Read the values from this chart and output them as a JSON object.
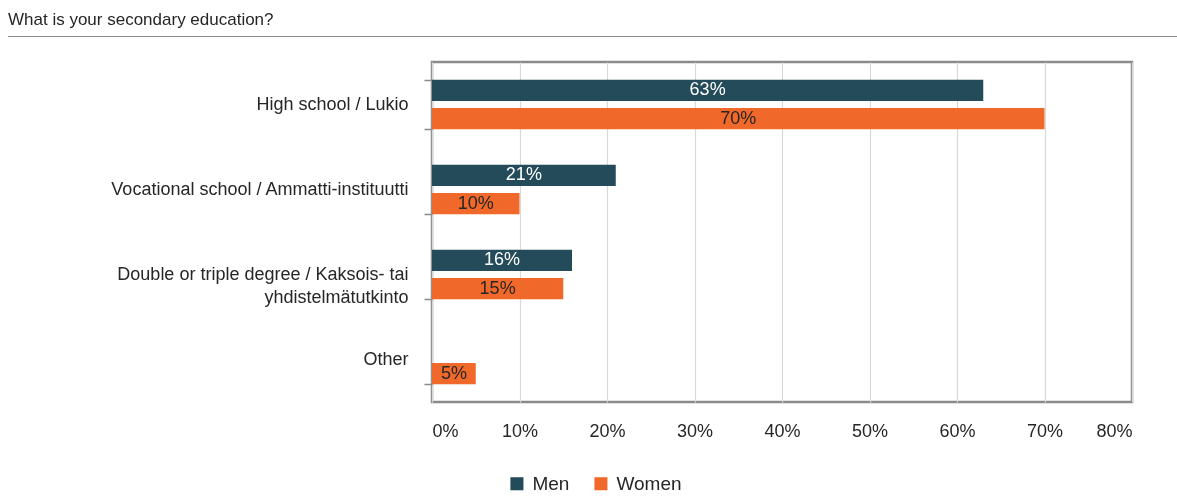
{
  "chart_data": {
    "type": "bar",
    "orientation": "horizontal",
    "title": "What is your secondary education?",
    "categories": [
      "High school / Lukio",
      "Vocational school / Ammatti-instituutti",
      "Double or triple degree / Kaksois- tai yhdistelmätutkinto",
      "Other"
    ],
    "series": [
      {
        "name": "Men",
        "color": "#244b5a",
        "values": [
          63,
          21,
          16,
          null
        ],
        "value_labels": [
          "63%",
          "21%",
          "16%",
          null
        ]
      },
      {
        "name": "Women",
        "color": "#f0692a",
        "values": [
          70,
          10,
          15,
          5
        ],
        "value_labels": [
          "70%",
          "10%",
          "15%",
          "5%"
        ]
      }
    ],
    "xlim": [
      0,
      80
    ],
    "xticks": [
      {
        "value": 0,
        "label": "0%"
      },
      {
        "value": 10,
        "label": "10%"
      },
      {
        "value": 20,
        "label": "20%"
      },
      {
        "value": 30,
        "label": "30%"
      },
      {
        "value": 40,
        "label": "40%"
      },
      {
        "value": 50,
        "label": "50%"
      },
      {
        "value": 60,
        "label": "60%"
      },
      {
        "value": 70,
        "label": "70%"
      },
      {
        "value": 80,
        "label": "80%"
      }
    ],
    "grid": "x",
    "legend": "bottom"
  }
}
